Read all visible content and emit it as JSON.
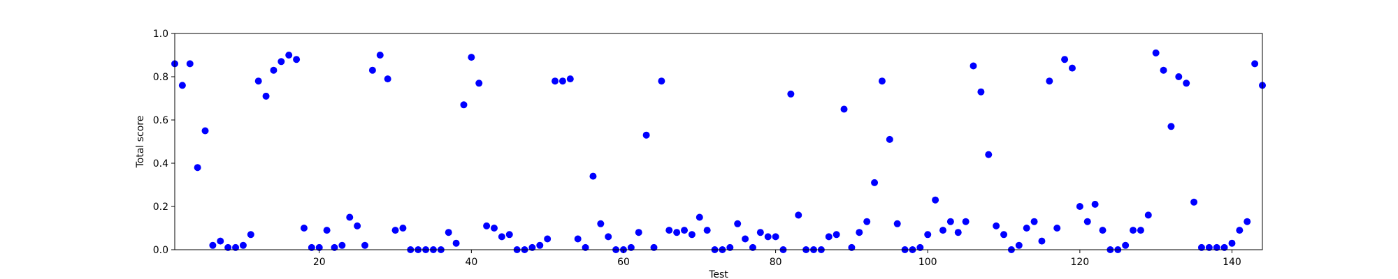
{
  "chart_data": {
    "type": "scatter",
    "title": "",
    "xlabel": "Test",
    "ylabel": "Total score",
    "xlim": [
      1,
      144
    ],
    "ylim": [
      0,
      1.0
    ],
    "xticks": [
      20,
      40,
      60,
      80,
      100,
      120,
      140
    ],
    "yticks": [
      0.0,
      0.2,
      0.4,
      0.6,
      0.8,
      1.0
    ],
    "xtick_labels": [
      "20",
      "40",
      "60",
      "80",
      "100",
      "120",
      "140"
    ],
    "ytick_labels": [
      "0.0",
      "0.2",
      "0.4",
      "0.6",
      "0.8",
      "1.0"
    ],
    "grid": false,
    "marker_color": "#0000ff",
    "series": [
      {
        "x": [
          1,
          2,
          3,
          4,
          5,
          6,
          7,
          8,
          9,
          10,
          11,
          12,
          13,
          14,
          15,
          16,
          17,
          18,
          19,
          20,
          21,
          22,
          23,
          24,
          25,
          26,
          27,
          28,
          29,
          30,
          31,
          32,
          33,
          34,
          35,
          36,
          37,
          38,
          39,
          40,
          41,
          42,
          43,
          44,
          45,
          46,
          47,
          48,
          49,
          50,
          51,
          52,
          53,
          54,
          55,
          56,
          57,
          58,
          59,
          60,
          61,
          62,
          63,
          64,
          65,
          66,
          67,
          68,
          69,
          70,
          71,
          72,
          73,
          74,
          75,
          76,
          77,
          78,
          79,
          80,
          81,
          82,
          83,
          84,
          85,
          86,
          87,
          88,
          89,
          90,
          91,
          92,
          93,
          94,
          95,
          96,
          97,
          98,
          99,
          100,
          101,
          102,
          103,
          104,
          105,
          106,
          107,
          108,
          109,
          110,
          111,
          112,
          113,
          114,
          115,
          116,
          117,
          118,
          119,
          120,
          121,
          122,
          123,
          124,
          125,
          126,
          127,
          128,
          129,
          130,
          131,
          132,
          133,
          134,
          135,
          136,
          137,
          138,
          139,
          140,
          141,
          142,
          143,
          144
        ],
        "y": [
          0.86,
          0.76,
          0.86,
          0.38,
          0.55,
          0.02,
          0.04,
          0.01,
          0.01,
          0.02,
          0.07,
          0.78,
          0.71,
          0.83,
          0.87,
          0.9,
          0.88,
          0.1,
          0.01,
          0.01,
          0.09,
          0.01,
          0.02,
          0.15,
          0.11,
          0.02,
          0.83,
          0.9,
          0.79,
          0.09,
          0.1,
          0.0,
          0.0,
          0.0,
          0.0,
          0.0,
          0.08,
          0.03,
          0.67,
          0.89,
          0.77,
          0.11,
          0.1,
          0.06,
          0.07,
          0.0,
          0.0,
          0.01,
          0.02,
          0.05,
          0.78,
          0.78,
          0.79,
          0.05,
          0.01,
          0.34,
          0.12,
          0.06,
          0.0,
          0.0,
          0.01,
          0.08,
          0.53,
          0.01,
          0.78,
          0.09,
          0.08,
          0.09,
          0.07,
          0.15,
          0.09,
          0.0,
          0.0,
          0.01,
          0.12,
          0.05,
          0.01,
          0.08,
          0.06,
          0.06,
          0.0,
          0.72,
          0.16,
          0.0,
          0.0,
          0.0,
          0.06,
          0.07,
          0.65,
          0.01,
          0.08,
          0.13,
          0.31,
          0.78,
          0.51,
          0.12,
          0.0,
          0.0,
          0.01,
          0.07,
          0.23,
          0.09,
          0.13,
          0.08,
          0.13,
          0.85,
          0.73,
          0.44,
          0.11,
          0.07,
          0.0,
          0.02,
          0.1,
          0.13,
          0.04,
          0.78,
          0.1,
          0.88,
          0.84,
          0.2,
          0.13,
          0.21,
          0.09,
          0.0,
          0.0,
          0.02,
          0.09,
          0.09,
          0.16,
          0.91,
          0.83,
          0.57,
          0.8,
          0.77,
          0.22,
          0.01,
          0.01,
          0.01,
          0.01,
          0.03,
          0.09,
          0.13,
          0.86,
          0.76
        ]
      }
    ]
  }
}
